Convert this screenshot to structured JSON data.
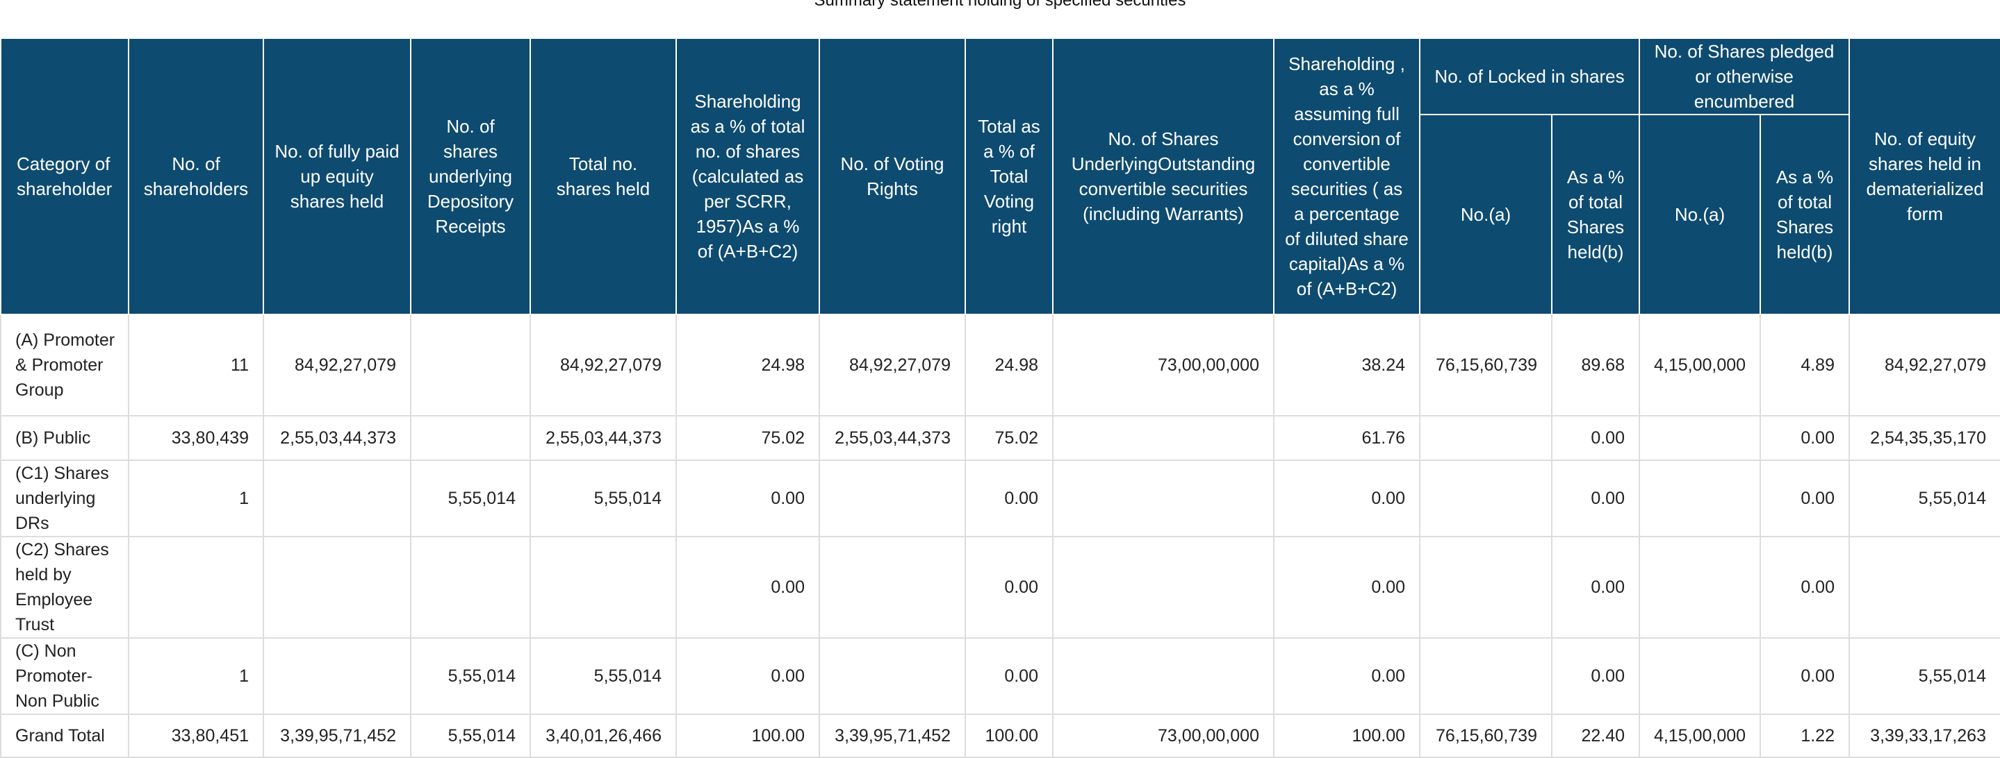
{
  "caption": "Summary statement holding of specified securities",
  "headers": {
    "category": "Category of shareholder",
    "num_shareholders": "No. of shareholders",
    "fully_paid": "No. of fully paid up equity shares held",
    "depository_receipts": "No. of shares underlying Depository Receipts",
    "total_shares": "Total no. shares held",
    "shareholding_pct": "Shareholding as a % of total no. of shares (calculated as per SCRR, 1957)As a % of (A+B+C2)",
    "voting_rights": "No. of Voting Rights",
    "total_voting_pct": "Total as a % of Total Voting right",
    "underlying_outstanding": "No. of Shares UnderlyingOutstanding convertible securities (including Warrants)",
    "full_conversion_pct": "Shareholding , as a % assuming full conversion of convertible securities ( as a percentage of diluted share capital)As a % of (A+B+C2)",
    "locked_group": "No. of Locked in shares",
    "pledged_group": "No. of Shares pledged or otherwise encumbered",
    "locked_no": "No.(a)",
    "locked_pct": "As a % of total Shares held(b)",
    "pledged_no": "No.(a)",
    "pledged_pct": "As a % of total Shares held(b)",
    "demat": "No. of equity shares held in dematerialized form"
  },
  "rows": [
    {
      "category": "(A) Promoter & Promoter Group",
      "num_shareholders": "11",
      "fully_paid": "84,92,27,079",
      "depository_receipts": "",
      "total_shares": "84,92,27,079",
      "shareholding_pct": "24.98",
      "voting_rights": "84,92,27,079",
      "total_voting_pct": "24.98",
      "underlying_outstanding": "73,00,00,000",
      "full_conversion_pct": "38.24",
      "locked_no": "76,15,60,739",
      "locked_pct": "89.68",
      "pledged_no": "4,15,00,000",
      "pledged_pct": "4.89",
      "demat": "84,92,27,079"
    },
    {
      "category": "(B) Public",
      "num_shareholders": "33,80,439",
      "fully_paid": "2,55,03,44,373",
      "depository_receipts": "",
      "total_shares": "2,55,03,44,373",
      "shareholding_pct": "75.02",
      "voting_rights": "2,55,03,44,373",
      "total_voting_pct": "75.02",
      "underlying_outstanding": "",
      "full_conversion_pct": "61.76",
      "locked_no": "",
      "locked_pct": "0.00",
      "pledged_no": "",
      "pledged_pct": "0.00",
      "demat": "2,54,35,35,170"
    },
    {
      "category": "(C1) Shares underlying DRs",
      "num_shareholders": "1",
      "fully_paid": "",
      "depository_receipts": "5,55,014",
      "total_shares": "5,55,014",
      "shareholding_pct": "0.00",
      "voting_rights": "",
      "total_voting_pct": "0.00",
      "underlying_outstanding": "",
      "full_conversion_pct": "0.00",
      "locked_no": "",
      "locked_pct": "0.00",
      "pledged_no": "",
      "pledged_pct": "0.00",
      "demat": "5,55,014"
    },
    {
      "category": "(C2) Shares held by Employee Trust",
      "num_shareholders": "",
      "fully_paid": "",
      "depository_receipts": "",
      "total_shares": "",
      "shareholding_pct": "0.00",
      "voting_rights": "",
      "total_voting_pct": "0.00",
      "underlying_outstanding": "",
      "full_conversion_pct": "0.00",
      "locked_no": "",
      "locked_pct": "0.00",
      "pledged_no": "",
      "pledged_pct": "0.00",
      "demat": ""
    },
    {
      "category": "(C) Non Promoter-Non Public",
      "num_shareholders": "1",
      "fully_paid": "",
      "depository_receipts": "5,55,014",
      "total_shares": "5,55,014",
      "shareholding_pct": "0.00",
      "voting_rights": "",
      "total_voting_pct": "0.00",
      "underlying_outstanding": "",
      "full_conversion_pct": "0.00",
      "locked_no": "",
      "locked_pct": "0.00",
      "pledged_no": "",
      "pledged_pct": "0.00",
      "demat": "5,55,014"
    },
    {
      "category": "Grand Total",
      "num_shareholders": "33,80,451",
      "fully_paid": "3,39,95,71,452",
      "depository_receipts": "5,55,014",
      "total_shares": "3,40,01,26,466",
      "shareholding_pct": "100.00",
      "voting_rights": "3,39,95,71,452",
      "total_voting_pct": "100.00",
      "underlying_outstanding": "73,00,00,000",
      "full_conversion_pct": "100.00",
      "locked_no": "76,15,60,739",
      "locked_pct": "22.40",
      "pledged_no": "4,15,00,000",
      "pledged_pct": "1.22",
      "demat": "3,39,33,17,263"
    }
  ]
}
